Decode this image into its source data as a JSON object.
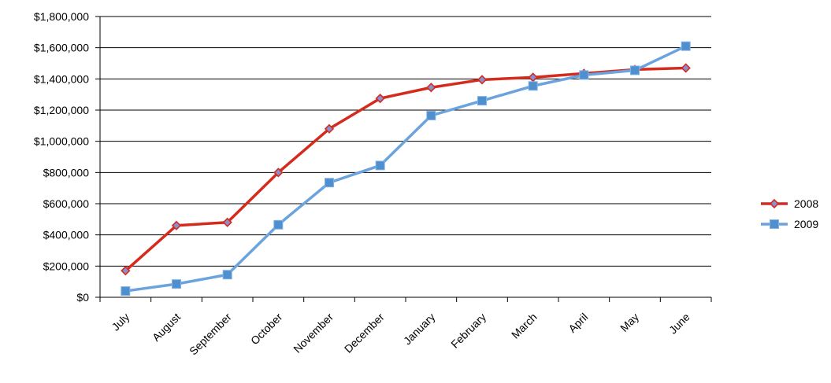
{
  "chart_data": {
    "type": "line",
    "title": "",
    "xlabel": "",
    "ylabel": "",
    "categories": [
      "July",
      "August",
      "September",
      "October",
      "November",
      "December",
      "January",
      "February",
      "March",
      "April",
      "May",
      "June"
    ],
    "ylim": [
      0,
      1800000
    ],
    "y_ticks": [
      0,
      200000,
      400000,
      600000,
      800000,
      1000000,
      1200000,
      1400000,
      1600000,
      1800000
    ],
    "y_tick_labels": [
      "$0",
      "$200,000",
      "$400,000",
      "$600,000",
      "$800,000",
      "$1,000,000",
      "$1,200,000",
      "$1,400,000",
      "$1,600,000",
      "$1,800,000"
    ],
    "grid": true,
    "legend_position": "right",
    "series": [
      {
        "name": "2008",
        "color": "#d42b1e",
        "marker": "diamond",
        "values": [
          170000,
          460000,
          480000,
          800000,
          1080000,
          1275000,
          1345000,
          1395000,
          1410000,
          1435000,
          1460000,
          1470000
        ]
      },
      {
        "name": "2009",
        "color": "#6aa3dd",
        "marker": "square",
        "values": [
          40000,
          85000,
          145000,
          465000,
          735000,
          845000,
          1165000,
          1260000,
          1355000,
          1425000,
          1455000,
          1610000
        ]
      }
    ]
  }
}
